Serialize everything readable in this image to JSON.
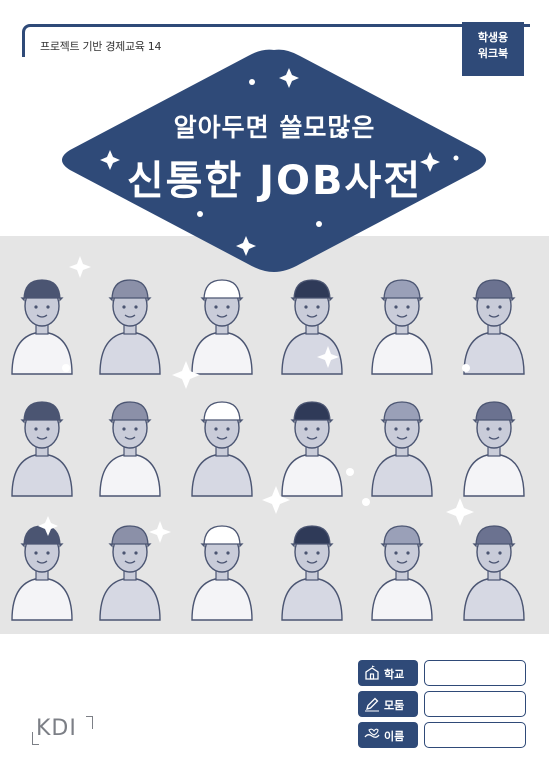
{
  "header": {
    "series_title": "프로젝트 기반 경제교육 14",
    "badge_line1": "학생용",
    "badge_line2": "워크북"
  },
  "cover": {
    "subtitle": "알아두면 쓸모많은",
    "title": "신통한 JOB사전"
  },
  "fields": [
    {
      "label": "학교",
      "icon": "school-icon"
    },
    {
      "label": "모둠",
      "icon": "pencil-icon"
    },
    {
      "label": "이름",
      "icon": "handshake-icon"
    }
  ],
  "publisher": {
    "logo_text": "KDI"
  },
  "colors": {
    "navy": "#2f4a78",
    "gray_band": "#e5e5e5",
    "figure_fill": "#c9ccd9",
    "figure_line": "#4b5572"
  },
  "illustration": {
    "rows": [
      [
        "baseball-player",
        "police-officer",
        "flight-attendant",
        "magician",
        "singer",
        "bartender"
      ],
      [
        "dentist",
        "construction-worker",
        "painter",
        "delivery-person",
        "hotel-bellhop",
        "doctor"
      ],
      [
        "chef",
        "pilot",
        "call-center-agent",
        "sailor",
        "engineer",
        "waitress"
      ]
    ]
  }
}
